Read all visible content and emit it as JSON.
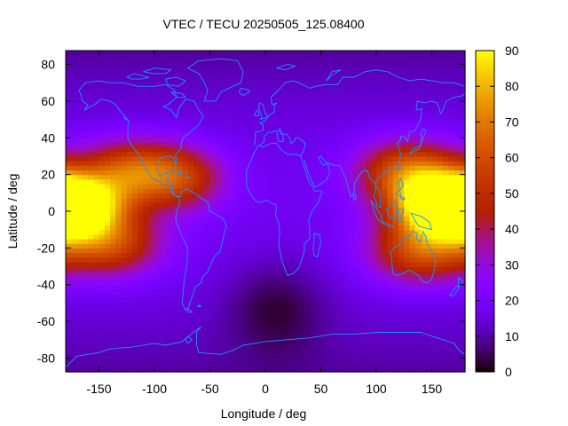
{
  "chart_data": {
    "type": "heatmap",
    "title": "VTEC / TECU 20250505_125.08400",
    "xlabel": "Longitude / deg",
    "ylabel": "Latitude / deg",
    "xlim": [
      -180,
      180
    ],
    "ylim": [
      -87.5,
      87.5
    ],
    "x_ticks": [
      -150,
      -100,
      -50,
      0,
      50,
      100,
      150
    ],
    "y_ticks": [
      -80,
      -60,
      -40,
      -20,
      0,
      20,
      40,
      60,
      80
    ],
    "colorbar": {
      "range": [
        0,
        90
      ],
      "ticks": [
        0,
        10,
        20,
        30,
        40,
        50,
        60,
        70,
        80,
        90
      ],
      "palette": "black-blue-purple-red-orange-yellow"
    },
    "grid_resolution": {
      "dlon": 5,
      "dlat": 2.5
    },
    "features": [
      {
        "name": "eastern equatorial anomaly",
        "lon": 160,
        "lat": 3,
        "vtec": 90
      },
      {
        "name": "eastern north crest",
        "lon": 130,
        "lat": 22,
        "vtec": 63
      },
      {
        "name": "eastern south crest",
        "lon": 140,
        "lat": -22,
        "vtec": 58
      },
      {
        "name": "western equatorial anomaly",
        "lon": -172,
        "lat": 3,
        "vtec": 86
      },
      {
        "name": "western north crest",
        "lon": -120,
        "lat": 22,
        "vtec": 60
      },
      {
        "name": "western south crest",
        "lon": -140,
        "lat": -18,
        "vtec": 56
      },
      {
        "name": "atlantic tail",
        "lon": -75,
        "lat": 18,
        "vtec": 48
      },
      {
        "name": "southern low",
        "lon": 10,
        "lat": -52,
        "vtec": 6
      }
    ],
    "background_vtec": 18,
    "coastline_color": "#1e90ff"
  }
}
